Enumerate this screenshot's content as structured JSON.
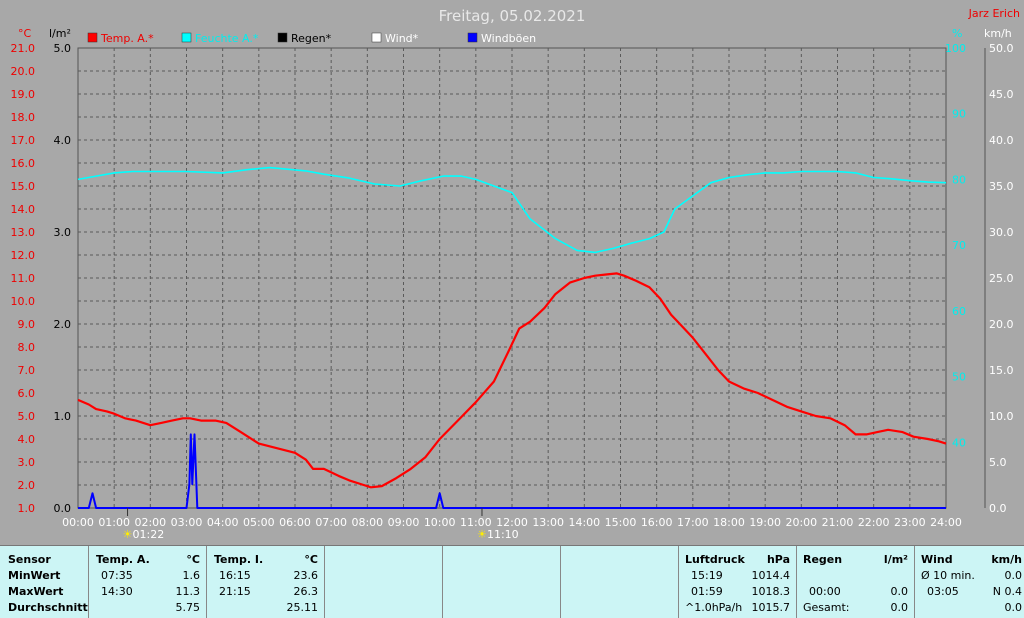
{
  "chart_data": {
    "type": "line",
    "title": "Freitag, 05.02.2021",
    "author": "Jarz Erich",
    "x_ticks": [
      "00:00",
      "01:00",
      "02:00",
      "03:00",
      "04:00",
      "05:00",
      "06:00",
      "07:00",
      "08:00",
      "09:00",
      "10:00",
      "11:00",
      "12:00",
      "13:00",
      "14:00",
      "15:00",
      "16:00",
      "17:00",
      "18:00",
      "19:00",
      "20:00",
      "21:00",
      "22:00",
      "23:00",
      "24:00"
    ],
    "x_range_hours": [
      0,
      24
    ],
    "axes": {
      "temp": {
        "unit": "°C",
        "range": [
          1.0,
          21.0
        ],
        "ticks": [
          "1.0",
          "2.0",
          "3.0",
          "4.0",
          "5.0",
          "6.0",
          "7.0",
          "8.0",
          "9.0",
          "10.0",
          "11.0",
          "12.0",
          "13.0",
          "14.0",
          "15.0",
          "16.0",
          "17.0",
          "18.0",
          "19.0",
          "20.0",
          "21.0"
        ]
      },
      "rain": {
        "unit": "l/m²",
        "range": [
          0.0,
          5.0
        ],
        "ticks": [
          "0.0",
          "1.0",
          "2.0",
          "3.0",
          "4.0",
          "5.0"
        ]
      },
      "humidity": {
        "unit": "%",
        "range": [
          30,
          100
        ],
        "ticks": [
          "40",
          "50",
          "60",
          "70",
          "80",
          "90",
          "100"
        ]
      },
      "wind": {
        "unit": "km/h",
        "range": [
          0.0,
          50.0
        ],
        "ticks": [
          "0.0",
          "5.0",
          "10.0",
          "15.0",
          "20.0",
          "25.0",
          "30.0",
          "35.0",
          "40.0",
          "45.0",
          "50.0"
        ]
      }
    },
    "grid": true,
    "legend_position": "top",
    "legend": [
      {
        "label": "Temp. A.*",
        "color": "#ff0000"
      },
      {
        "label": "Feuchte A.*",
        "color": "#00ffff"
      },
      {
        "label": "Regen*",
        "color": "#000000"
      },
      {
        "label": "Wind*",
        "color": "#ffffff"
      },
      {
        "label": "Windböen",
        "color": "#0000ff"
      }
    ],
    "series": [
      {
        "name": "Temp. A.*",
        "axis": "temp",
        "color": "#ff0000",
        "x": [
          0,
          0.3,
          0.5,
          0.8,
          1.0,
          1.3,
          1.6,
          2.0,
          2.3,
          2.6,
          2.9,
          3.1,
          3.4,
          3.8,
          4.1,
          4.5,
          4.7,
          5.0,
          5.5,
          6.0,
          6.3,
          6.5,
          6.8,
          7.2,
          7.5,
          7.9,
          8.1,
          8.4,
          8.8,
          9.2,
          9.6,
          10.0,
          10.5,
          11.0,
          11.5,
          11.9,
          12.2,
          12.5,
          12.9,
          13.2,
          13.6,
          14.0,
          14.3,
          14.6,
          14.9,
          15.1,
          15.4,
          15.8,
          16.1,
          16.4,
          16.7,
          17.0,
          17.4,
          17.7,
          18.0,
          18.4,
          18.8,
          19.2,
          19.6,
          20.0,
          20.4,
          20.8,
          21.2,
          21.5,
          21.8,
          22.1,
          22.4,
          22.8,
          23.1,
          23.5,
          23.8,
          24.0
        ],
        "values": [
          5.7,
          5.5,
          5.3,
          5.2,
          5.1,
          4.9,
          4.8,
          4.6,
          4.7,
          4.8,
          4.9,
          4.9,
          4.8,
          4.8,
          4.7,
          4.3,
          4.1,
          3.8,
          3.6,
          3.4,
          3.1,
          2.7,
          2.7,
          2.4,
          2.2,
          2.0,
          1.9,
          1.95,
          2.3,
          2.7,
          3.2,
          4.0,
          4.8,
          5.6,
          6.5,
          7.8,
          8.8,
          9.1,
          9.7,
          10.3,
          10.8,
          11.0,
          11.1,
          11.15,
          11.2,
          11.1,
          10.9,
          10.6,
          10.1,
          9.4,
          8.9,
          8.4,
          7.6,
          7.0,
          6.5,
          6.2,
          6.0,
          5.7,
          5.4,
          5.2,
          5.0,
          4.9,
          4.6,
          4.2,
          4.2,
          4.3,
          4.4,
          4.3,
          4.1,
          4.0,
          3.9,
          3.8
        ]
      },
      {
        "name": "Feuchte A.*",
        "axis": "humidity",
        "color": "#00ffff",
        "x": [
          0,
          0.5,
          1.0,
          1.5,
          2.0,
          3.0,
          4.0,
          4.7,
          5.3,
          5.9,
          6.3,
          6.8,
          7.5,
          8.2,
          8.9,
          9.5,
          10.1,
          10.6,
          11.0,
          11.5,
          12.0,
          12.5,
          13.2,
          13.8,
          14.3,
          14.8,
          15.3,
          15.8,
          16.2,
          16.5,
          17.0,
          17.5,
          18.0,
          18.5,
          19.0,
          19.5,
          20.0,
          20.5,
          21.0,
          21.5,
          22.0,
          22.5,
          23.0,
          23.5,
          24.0
        ],
        "values": [
          80,
          80.5,
          81,
          81.2,
          81.2,
          81.2,
          81,
          81.5,
          81.8,
          81.5,
          81.3,
          80.8,
          80.2,
          79.3,
          79,
          79.8,
          80.5,
          80.5,
          80,
          79,
          78,
          74,
          71,
          69.2,
          68.9,
          69.5,
          70.3,
          71,
          72,
          75.5,
          77.5,
          79.5,
          80.3,
          80.7,
          81,
          81,
          81.2,
          81.2,
          81.2,
          81,
          80.3,
          80.1,
          79.8,
          79.6,
          79.5
        ]
      },
      {
        "name": "Windböen",
        "axis": "wind",
        "color": "#0000ff",
        "x": [
          0,
          0.3,
          0.4,
          0.5,
          0.7,
          3.0,
          3.08,
          3.12,
          3.16,
          3.22,
          3.3,
          9.7,
          9.9,
          10.0,
          10.1,
          10.2,
          24.0
        ],
        "values": [
          0,
          0,
          1.6,
          0,
          0,
          0,
          2.6,
          8.0,
          2.6,
          8.0,
          0,
          0,
          0,
          1.6,
          0,
          0,
          0
        ]
      }
    ],
    "sun_markers": [
      {
        "label": "01:22",
        "hour": 1.37
      },
      {
        "label": "11:10",
        "hour": 11.17
      }
    ]
  },
  "stats": {
    "sensor": {
      "title": "Sensor",
      "rows": [
        "MinWert",
        "MaxWert",
        "Durchschnitt"
      ]
    },
    "temp_a": {
      "title": "Temp. A.",
      "unit": "°C",
      "times": [
        "07:35",
        "14:30",
        ""
      ],
      "values": [
        "1.6",
        "11.3",
        "5.75"
      ]
    },
    "temp_i": {
      "title": "Temp. I.",
      "unit": "°C",
      "times": [
        "16:15",
        "21:15",
        ""
      ],
      "values": [
        "23.6",
        "26.3",
        "25.11"
      ]
    },
    "luftdruck": {
      "title": "Luftdruck",
      "unit": "hPa",
      "times": [
        "15:19",
        "01:59",
        "^1.0hPa/h"
      ],
      "values": [
        "1014.4",
        "1018.3",
        "1015.7"
      ]
    },
    "regen": {
      "title": "Regen",
      "unit": "l/m²",
      "times": [
        "",
        "00:00",
        "Gesamt:"
      ],
      "values": [
        "",
        "0.0",
        "0.0"
      ]
    },
    "wind": {
      "title": "Wind",
      "unit": "km/h",
      "times": [
        "Ø 10 min.",
        "03:05",
        ""
      ],
      "values": [
        "0.0",
        "N 0.4",
        "0.0"
      ]
    }
  }
}
